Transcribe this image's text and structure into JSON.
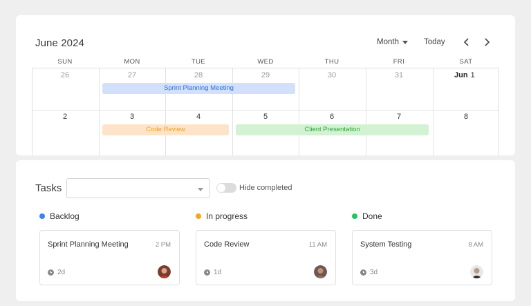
{
  "calendar": {
    "title": "June 2024",
    "view_label": "Month",
    "today_label": "Today",
    "weekdays": [
      "SUN",
      "MON",
      "TUE",
      "WED",
      "THU",
      "FRI",
      "SAT"
    ],
    "week1": [
      "26",
      "27",
      "28",
      "29",
      "30",
      "31"
    ],
    "week1_sat": {
      "month": "Jun",
      "day": "1"
    },
    "week2": [
      "2",
      "3",
      "4",
      "5",
      "6",
      "7",
      "8"
    ],
    "events": [
      {
        "title": "Sprint Planning Meeting",
        "color": "#2f6fe0"
      },
      {
        "title": "Code Review",
        "color": "#f2a11f"
      },
      {
        "title": "Client Presentation",
        "color": "#2fa83a"
      }
    ]
  },
  "tasks": {
    "title": "Tasks",
    "filter_value": "",
    "hide_completed_label": "Hide completed",
    "hide_completed_on": false,
    "columns": [
      {
        "label": "Backlog",
        "color": "#3b82f6",
        "cards": [
          {
            "name": "Sprint Planning Meeting",
            "time": "2 PM",
            "duration": "2d"
          }
        ]
      },
      {
        "label": "In progress",
        "color": "#f5a623",
        "cards": [
          {
            "name": "Code Review",
            "time": "11 AM",
            "duration": "1d"
          }
        ]
      },
      {
        "label": "Done",
        "color": "#22c55e",
        "cards": [
          {
            "name": "System Testing",
            "time": "8 AM",
            "duration": "3d"
          }
        ]
      }
    ]
  }
}
